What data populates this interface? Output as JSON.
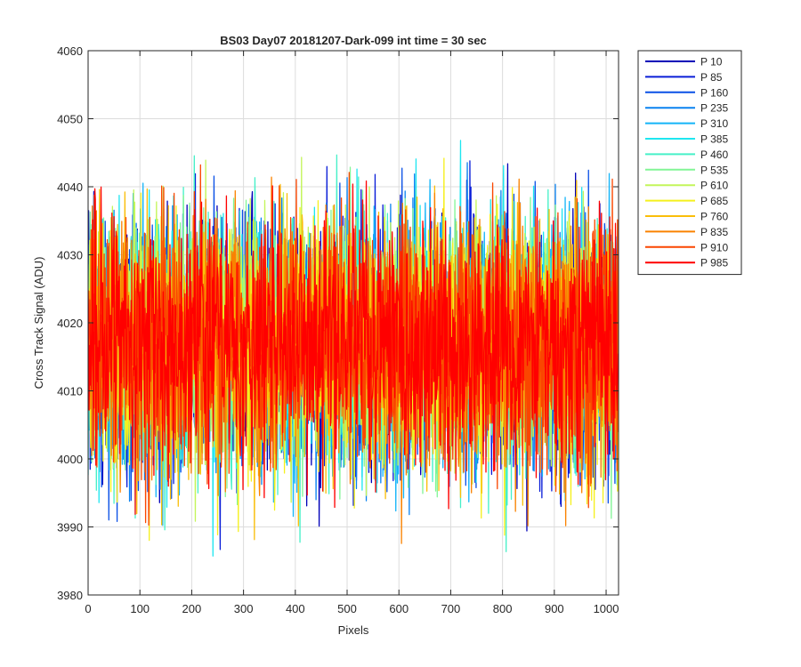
{
  "chart_data": {
    "type": "line",
    "title": "BS03 Day07 20181207-Dark-099 int time = 30 sec",
    "xlabel": "Pixels",
    "ylabel": "Cross Track Signal (ADU)",
    "xlim": [
      0,
      1024
    ],
    "ylim": [
      3980,
      4060
    ],
    "xticks": [
      0,
      100,
      200,
      300,
      400,
      500,
      600,
      700,
      800,
      900,
      1000
    ],
    "yticks": [
      3980,
      3990,
      4000,
      4010,
      4020,
      4030,
      4040,
      4050,
      4060
    ],
    "grid": true,
    "legend_position": "outside-top-right",
    "noise": {
      "mean": 4017,
      "spread": 9,
      "min": 3982,
      "max": 4055
    },
    "series": [
      {
        "name": "P 10",
        "color": "#0000b8"
      },
      {
        "name": "P 85",
        "color": "#0a1ed8"
      },
      {
        "name": "P 160",
        "color": "#0a50e6"
      },
      {
        "name": "P 235",
        "color": "#0a82f0"
      },
      {
        "name": "P 310",
        "color": "#14b4f8"
      },
      {
        "name": "P 385",
        "color": "#1ee6f0"
      },
      {
        "name": "P 460",
        "color": "#46f0c8"
      },
      {
        "name": "P 535",
        "color": "#82f596"
      },
      {
        "name": "P 610",
        "color": "#c3f55a"
      },
      {
        "name": "P 685",
        "color": "#f5f01e"
      },
      {
        "name": "P 760",
        "color": "#fabe0a"
      },
      {
        "name": "P 835",
        "color": "#fa8200"
      },
      {
        "name": "P 910",
        "color": "#fa4600"
      },
      {
        "name": "P 985",
        "color": "#ff0000"
      }
    ]
  }
}
